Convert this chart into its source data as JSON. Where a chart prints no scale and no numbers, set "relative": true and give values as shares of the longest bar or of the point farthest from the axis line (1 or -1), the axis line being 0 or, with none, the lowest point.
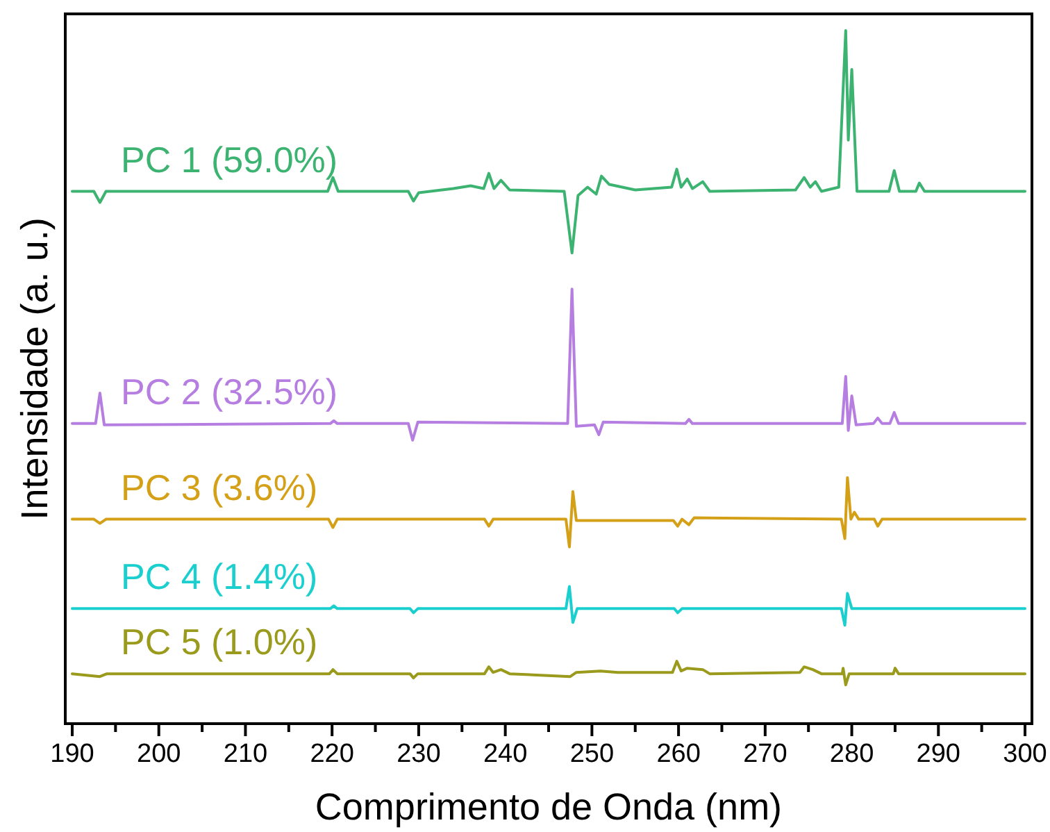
{
  "chart_data": {
    "type": "line",
    "relative": true,
    "xlabel": "Comprimento de Onda (nm)",
    "ylabel": "Intensidade (a. u.)",
    "xlim": [
      189.2,
      300.8
    ],
    "xticks": [
      190,
      {
        "value": 195,
        "label": null
      },
      200,
      {
        "value": 205,
        "label": null
      },
      210,
      {
        "value": 215,
        "label": null
      },
      220,
      {
        "value": 225,
        "label": null
      },
      230,
      {
        "value": 235,
        "label": null
      },
      240,
      {
        "value": 245,
        "label": null
      },
      250,
      {
        "value": 255,
        "label": null
      },
      260,
      {
        "value": 265,
        "label": null
      },
      270,
      {
        "value": 275,
        "label": null
      },
      280,
      {
        "value": 285,
        "label": null
      },
      290,
      {
        "value": 295,
        "label": null
      },
      300
    ],
    "grid": false,
    "marker": "none",
    "line_style": "solid",
    "series": [
      {
        "name": "PC 1 (59.0%)",
        "color": "#3cb371",
        "x": [
          190,
          192.5,
          193.2,
          193.9,
          219.5,
          220.1,
          220.7,
          228.8,
          229.4,
          230.0,
          234,
          236,
          237.5,
          238.1,
          238.7,
          239.5,
          240.5,
          246.8,
          247.7,
          248.4,
          249.5,
          250.5,
          251.1,
          252,
          255,
          259.2,
          259.8,
          260.3,
          261.0,
          261.6,
          262.8,
          263.6,
          273.5,
          274.5,
          275.2,
          275.8,
          276.5,
          278.5,
          279.3,
          279.6,
          280.0,
          280.6,
          284.3,
          284.9,
          285.5,
          287.4,
          287.8,
          288.4,
          300
        ],
        "values": [
          0.768,
          0.768,
          0.752,
          0.768,
          0.768,
          0.788,
          0.768,
          0.768,
          0.754,
          0.766,
          0.772,
          0.776,
          0.772,
          0.794,
          0.772,
          0.784,
          0.77,
          0.768,
          0.679,
          0.762,
          0.774,
          0.764,
          0.79,
          0.778,
          0.77,
          0.774,
          0.8,
          0.774,
          0.786,
          0.772,
          0.782,
          0.768,
          0.77,
          0.788,
          0.774,
          0.782,
          0.768,
          0.774,
          1,
          0.842,
          0.944,
          0.768,
          0.768,
          0.798,
          0.768,
          0.768,
          0.78,
          0.768,
          0.768
        ]
      },
      {
        "name": "PC 2 (32.5%)",
        "color": "#b57ee0",
        "x": [
          190,
          192.7,
          193.2,
          193.7,
          219.8,
          220.2,
          220.6,
          228.8,
          229.3,
          229.9,
          247.2,
          247.7,
          248.2,
          250.3,
          250.8,
          251.3,
          260.8,
          261.2,
          261.6,
          278.9,
          279.3,
          279.6,
          280.0,
          280.5,
          282.5,
          283,
          283.5,
          284.4,
          284.9,
          285.4,
          300
        ],
        "values": [
          0.433,
          0.433,
          0.477,
          0.431,
          0.433,
          0.437,
          0.433,
          0.433,
          0.409,
          0.435,
          0.433,
          0.627,
          0.429,
          0.431,
          0.417,
          0.435,
          0.433,
          0.439,
          0.433,
          0.433,
          0.501,
          0.423,
          0.473,
          0.431,
          0.433,
          0.441,
          0.433,
          0.433,
          0.449,
          0.433,
          0.433
        ]
      },
      {
        "name": "PC 3 (3.6%)",
        "color": "#d4a017",
        "x": [
          190,
          192.5,
          193.2,
          193.9,
          219.6,
          220.1,
          220.6,
          237.6,
          238.1,
          238.6,
          247.0,
          247.4,
          247.8,
          248.2,
          259.4,
          259.9,
          260.4,
          261.2,
          261.8,
          278.8,
          279.2,
          279.5,
          279.9,
          280.3,
          280.8,
          282.6,
          283.0,
          283.5,
          300
        ],
        "values": [
          0.295,
          0.295,
          0.289,
          0.295,
          0.295,
          0.283,
          0.295,
          0.295,
          0.285,
          0.295,
          0.295,
          0.255,
          0.335,
          0.293,
          0.293,
          0.285,
          0.295,
          0.287,
          0.297,
          0.295,
          0.267,
          0.355,
          0.295,
          0.305,
          0.295,
          0.295,
          0.285,
          0.295,
          0.295
        ]
      },
      {
        "name": "PC 4 (1.4%)",
        "color": "#1ccfcf",
        "x": [
          190,
          219.8,
          220.2,
          220.6,
          229,
          229.4,
          229.9,
          247.0,
          247.4,
          247.8,
          248.3,
          259.5,
          259.9,
          260.4,
          278.8,
          279.2,
          279.5,
          280.0,
          300
        ],
        "values": [
          0.166,
          0.166,
          0.17,
          0.166,
          0.166,
          0.16,
          0.166,
          0.166,
          0.198,
          0.146,
          0.166,
          0.166,
          0.16,
          0.166,
          0.166,
          0.142,
          0.188,
          0.166,
          0.166
        ]
      },
      {
        "name": "PC 5 (1.0%)",
        "color": "#9a9a1c",
        "x": [
          190,
          193.2,
          194,
          219.7,
          220.1,
          220.6,
          229,
          229.4,
          229.9,
          237.6,
          238.1,
          238.6,
          239.5,
          240.5,
          247.5,
          248.2,
          251,
          253,
          259.3,
          259.8,
          260.3,
          261,
          262.8,
          263.6,
          274.0,
          274.5,
          275.5,
          276.5,
          278.9,
          279.0,
          279.3,
          279.7,
          284.8,
          285.0,
          285.4,
          300
        ],
        "values": [
          0.072,
          0.068,
          0.072,
          0.072,
          0.078,
          0.072,
          0.072,
          0.066,
          0.072,
          0.072,
          0.082,
          0.074,
          0.078,
          0.072,
          0.068,
          0.074,
          0.076,
          0.074,
          0.074,
          0.09,
          0.076,
          0.08,
          0.078,
          0.072,
          0.074,
          0.082,
          0.078,
          0.072,
          0.072,
          0.08,
          0.056,
          0.072,
          0.072,
          0.08,
          0.072,
          0.072
        ]
      }
    ]
  }
}
